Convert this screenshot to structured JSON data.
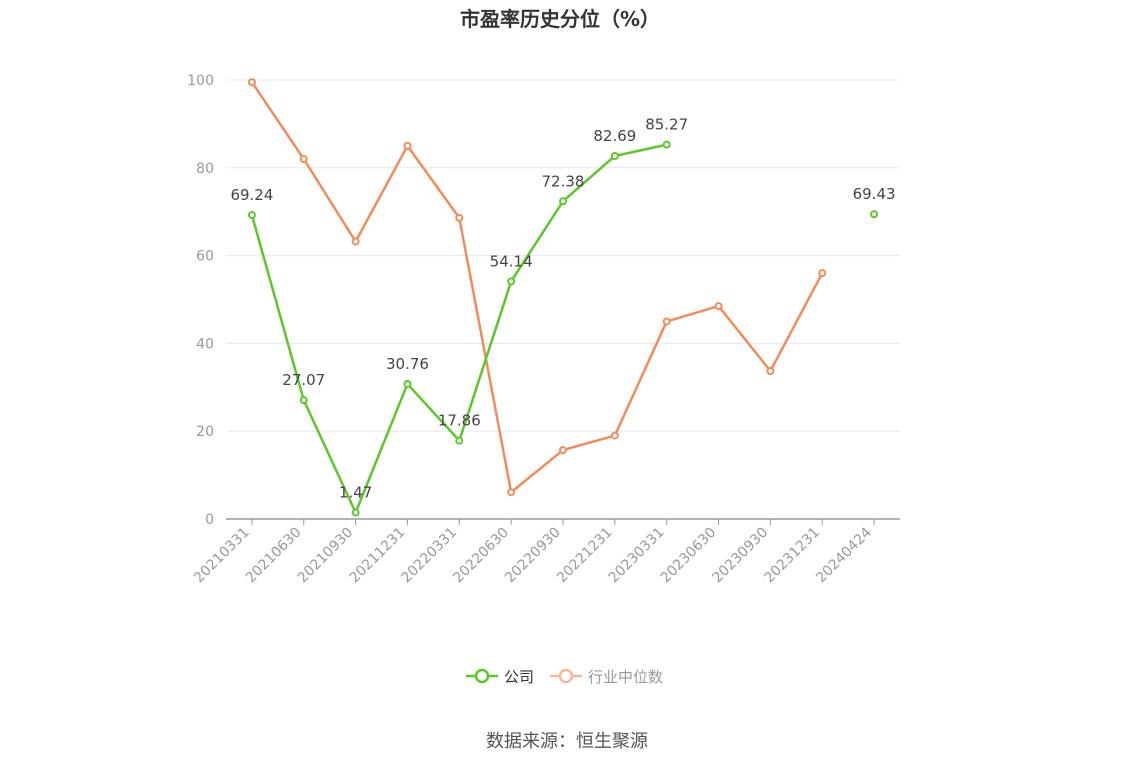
{
  "chart_data": {
    "type": "line",
    "title": "市盈率历史分位（%）",
    "categories": [
      "20210331",
      "20210630",
      "20210930",
      "20211231",
      "20220331",
      "20220630",
      "20220930",
      "20221231",
      "20230331",
      "20230630",
      "20230930",
      "20231231",
      "20240424"
    ],
    "ylim": [
      0,
      100
    ],
    "yticks": [
      0,
      20,
      40,
      60,
      80,
      100
    ],
    "grid": true,
    "legend_position": "bottom",
    "series": [
      {
        "name": "公司",
        "color": "#5cc72a",
        "values": [
          69.24,
          27.07,
          1.47,
          30.76,
          17.86,
          54.14,
          72.38,
          82.69,
          85.27,
          null,
          null,
          null,
          69.43
        ],
        "labels": [
          "69.24",
          "27.07",
          "1.47",
          "30.76",
          "17.86",
          "54.14",
          "72.38",
          "82.69",
          "85.27",
          "",
          "",
          "",
          "69.43"
        ]
      },
      {
        "name": "行业中位数",
        "color": "#f08c5a",
        "legend_color": "#f4b89a",
        "values": [
          99.5,
          82.0,
          63.2,
          85.0,
          68.6,
          6.1,
          15.7,
          19.0,
          45.0,
          48.5,
          33.7,
          56.0,
          null
        ]
      }
    ]
  },
  "footer": {
    "source": "数据来源：恒生聚源"
  }
}
